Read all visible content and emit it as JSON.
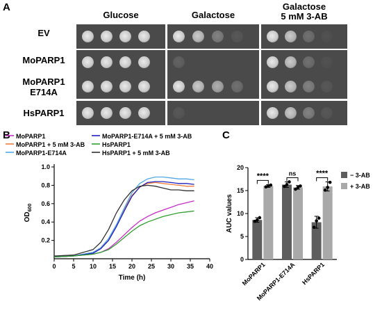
{
  "panels": {
    "a": "A",
    "b": "B",
    "c": "C"
  },
  "panel_a": {
    "columns": [
      {
        "title": "Glucose",
        "subtitle": ""
      },
      {
        "title": "Galactose",
        "subtitle": ""
      },
      {
        "title": "Galactose",
        "subtitle": "5 mM 3-AB"
      }
    ],
    "rows": [
      {
        "label": "EV",
        "label2": "",
        "growth": [
          [
            1,
            1,
            1,
            1
          ],
          [
            1,
            0.9,
            0.6,
            0.3
          ],
          [
            1,
            0.9,
            0.5,
            0.2
          ]
        ]
      },
      {
        "label": "MoPARP1",
        "label2": "",
        "growth": [
          [
            1,
            1,
            1,
            1
          ],
          [
            0.4,
            0,
            0,
            0
          ],
          [
            1,
            0.9,
            0.5,
            0.2
          ]
        ]
      },
      {
        "label": "MoPARP1",
        "label2": "E714A",
        "growth": [
          [
            1,
            1,
            1,
            1
          ],
          [
            1,
            0.9,
            0.8,
            0.5
          ],
          [
            1,
            0.9,
            0.6,
            0.3
          ]
        ]
      },
      {
        "label": "HsPARP1",
        "label2": "",
        "growth": [
          [
            1,
            1,
            1,
            1
          ],
          [
            0.3,
            0,
            0,
            0
          ],
          [
            1,
            0.9,
            0.6,
            0.3
          ]
        ]
      }
    ]
  },
  "panel_b": {
    "chart_data": {
      "type": "line",
      "xlabel": "Time (h)",
      "ylabel": "OD",
      "ylabel_sub": "600",
      "xlim": [
        0,
        40
      ],
      "ylim": [
        0,
        1.0
      ],
      "xticks": [
        0,
        5,
        10,
        15,
        20,
        25,
        30,
        35,
        40
      ],
      "yticks": [
        "0.2",
        "0.4",
        "0.6",
        "0.8",
        "1.0"
      ],
      "ytick_values": [
        0.2,
        0.4,
        0.6,
        0.8,
        1.0
      ],
      "legend_position": "top",
      "series": [
        {
          "name": "MoPARP1",
          "color": "#c62ec6",
          "x": [
            0,
            5,
            10,
            12,
            14,
            16,
            18,
            20,
            22,
            24,
            26,
            28,
            30,
            32,
            34,
            36
          ],
          "y": [
            0.02,
            0.03,
            0.05,
            0.07,
            0.11,
            0.18,
            0.26,
            0.34,
            0.41,
            0.46,
            0.5,
            0.53,
            0.56,
            0.59,
            0.61,
            0.63
          ]
        },
        {
          "name": "MoPARP1 + 5 mM 3-AB",
          "color": "#f07f3c",
          "x": [
            0,
            5,
            10,
            12,
            14,
            16,
            18,
            20,
            22,
            24,
            26,
            28,
            30,
            32,
            34,
            36
          ],
          "y": [
            0.02,
            0.03,
            0.07,
            0.12,
            0.22,
            0.37,
            0.54,
            0.69,
            0.78,
            0.82,
            0.83,
            0.82,
            0.81,
            0.8,
            0.79,
            0.79
          ]
        },
        {
          "name": "MoPARP1-E714A",
          "color": "#4fa8e8",
          "x": [
            0,
            5,
            10,
            12,
            14,
            16,
            18,
            20,
            22,
            24,
            26,
            28,
            30,
            32,
            34,
            36
          ],
          "y": [
            0.02,
            0.03,
            0.07,
            0.12,
            0.22,
            0.37,
            0.55,
            0.72,
            0.82,
            0.87,
            0.89,
            0.89,
            0.88,
            0.87,
            0.87,
            0.86
          ]
        },
        {
          "name": "MoPARP1-E714A + 5 mM 3-AB",
          "color": "#1f1fbf",
          "x": [
            0,
            5,
            10,
            12,
            14,
            16,
            18,
            20,
            22,
            24,
            26,
            28,
            30,
            32,
            34,
            36
          ],
          "y": [
            0.02,
            0.03,
            0.06,
            0.11,
            0.2,
            0.35,
            0.52,
            0.68,
            0.78,
            0.83,
            0.84,
            0.84,
            0.83,
            0.82,
            0.82,
            0.81
          ]
        },
        {
          "name": "HsPARP1",
          "color": "#2e9e2e",
          "x": [
            0,
            5,
            10,
            12,
            14,
            16,
            18,
            20,
            22,
            24,
            26,
            28,
            30,
            32,
            34,
            36
          ],
          "y": [
            0.02,
            0.03,
            0.05,
            0.07,
            0.1,
            0.16,
            0.23,
            0.3,
            0.36,
            0.4,
            0.43,
            0.46,
            0.48,
            0.5,
            0.51,
            0.52
          ]
        },
        {
          "name": "HsPARP1 + 5 mM 3-AB",
          "color": "#303030",
          "x": [
            0,
            5,
            10,
            12,
            14,
            16,
            18,
            20,
            22,
            24,
            26,
            28,
            30,
            32,
            34,
            36
          ],
          "y": [
            0.03,
            0.04,
            0.1,
            0.18,
            0.32,
            0.5,
            0.64,
            0.74,
            0.79,
            0.8,
            0.79,
            0.77,
            0.75,
            0.75,
            0.74,
            0.74
          ]
        }
      ]
    }
  },
  "panel_c": {
    "chart_data": {
      "type": "bar",
      "ylabel": "AUC values",
      "ylim": [
        0,
        20
      ],
      "yticks": [
        "0",
        "5",
        "10",
        "15",
        "20"
      ],
      "ytick_values": [
        0,
        5,
        10,
        15,
        20
      ],
      "categories": [
        "MoPARP1",
        "MoPARP1-E714A",
        "HsPARP1"
      ],
      "legend_position": "top-right",
      "series": [
        {
          "name": "− 3-AB",
          "color": "#5e5e5e",
          "values": [
            8.6,
            16.3,
            8.1
          ],
          "errors": [
            0.5,
            0.6,
            1.3
          ],
          "points": [
            [
              8.3,
              8.6,
              9.1
            ],
            [
              15.9,
              16.3,
              16.9
            ],
            [
              7.0,
              8.4,
              9.0
            ]
          ]
        },
        {
          "name": "+ 3-AB",
          "color": "#a9a9a9",
          "values": [
            16.0,
            15.7,
            15.9
          ],
          "errors": [
            0.3,
            0.4,
            1.0
          ],
          "points": [
            [
              15.8,
              16.0,
              16.2
            ],
            [
              15.3,
              15.7,
              16.0
            ],
            [
              15.1,
              15.7,
              16.8
            ]
          ]
        }
      ],
      "significance": [
        "****",
        "ns",
        "****"
      ]
    }
  }
}
